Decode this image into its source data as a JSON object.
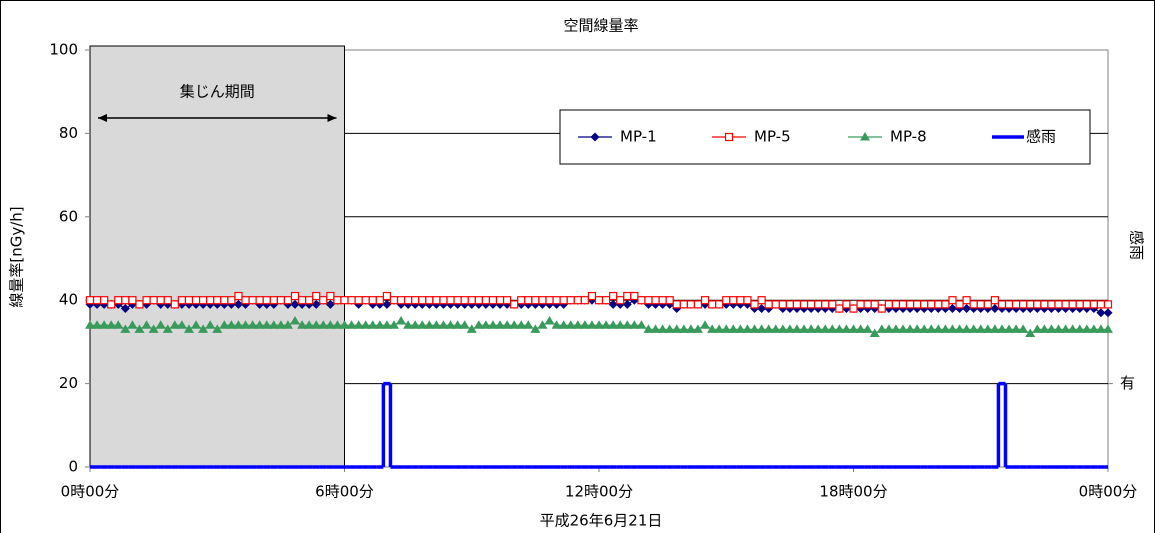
{
  "chart_data": {
    "type": "line",
    "title": "空間線量率",
    "xlabel": "平成26年6月21日",
    "ylabel": "線量率[nGy/h]",
    "y2label": "感雨",
    "shade": {
      "label": "集じん期間",
      "x": [
        0,
        360
      ]
    },
    "legend": "upper right",
    "grid": true,
    "xlim": [
      0,
      1440
    ],
    "xticks": [
      {
        "value": 0,
        "label": "0時00分"
      },
      {
        "value": 360,
        "label": "6時00分"
      },
      {
        "value": 720,
        "label": "12時00分"
      },
      {
        "value": 1080,
        "label": "18時00分"
      },
      {
        "value": 1440,
        "label": "0時00分"
      }
    ],
    "ylim": [
      0,
      100
    ],
    "yticks": [
      0,
      20,
      40,
      60,
      80,
      100
    ],
    "y2lim": [
      0,
      100
    ],
    "y2ticks": [
      {
        "value": 20,
        "label": "有"
      }
    ],
    "x": [
      0,
      10,
      20,
      30,
      40,
      50,
      60,
      70,
      80,
      90,
      100,
      110,
      120,
      130,
      140,
      150,
      160,
      170,
      180,
      190,
      200,
      210,
      220,
      230,
      240,
      250,
      260,
      270,
      280,
      290,
      300,
      310,
      320,
      330,
      340,
      350,
      360,
      370,
      380,
      390,
      400,
      410,
      420,
      430,
      440,
      450,
      460,
      470,
      480,
      490,
      500,
      510,
      520,
      530,
      540,
      550,
      560,
      570,
      580,
      590,
      600,
      610,
      620,
      630,
      640,
      650,
      660,
      670,
      680,
      690,
      700,
      710,
      720,
      730,
      740,
      750,
      760,
      770,
      780,
      790,
      800,
      810,
      820,
      830,
      840,
      850,
      860,
      870,
      880,
      890,
      900,
      910,
      920,
      930,
      940,
      950,
      960,
      970,
      980,
      990,
      1000,
      1010,
      1020,
      1030,
      1040,
      1050,
      1060,
      1070,
      1080,
      1090,
      1100,
      1110,
      1120,
      1130,
      1140,
      1150,
      1160,
      1170,
      1180,
      1190,
      1200,
      1210,
      1220,
      1230,
      1240,
      1250,
      1260,
      1270,
      1280,
      1290,
      1300,
      1310,
      1320,
      1330,
      1340,
      1350,
      1360,
      1370,
      1380,
      1390,
      1400,
      1410,
      1420,
      1430,
      1440
    ],
    "series": [
      {
        "name": "MP-1",
        "color": "#000080",
        "marker": "diamond",
        "values": [
          39,
          39,
          39,
          39,
          39,
          38,
          39,
          39,
          39,
          40,
          39,
          39,
          39,
          39,
          39,
          39,
          39,
          39,
          39,
          39,
          39,
          39,
          39,
          40,
          39,
          39,
          39,
          40,
          39,
          39,
          39,
          39,
          39,
          40,
          39,
          40,
          40,
          40,
          39,
          40,
          39,
          39,
          39,
          40,
          39,
          39,
          39,
          39,
          39,
          39,
          39,
          39,
          39,
          39,
          39,
          39,
          39,
          39,
          39,
          39,
          39,
          39,
          39,
          39,
          39,
          39,
          39,
          39,
          40,
          40,
          40,
          40,
          40,
          40,
          39,
          39,
          39,
          40,
          40,
          39,
          39,
          39,
          39,
          38,
          39,
          39,
          39,
          39,
          39,
          39,
          39,
          39,
          39,
          39,
          38,
          38,
          38,
          39,
          38,
          38,
          38,
          38,
          38,
          38,
          38,
          38,
          38,
          38,
          38,
          38,
          38,
          38,
          38,
          38,
          38,
          38,
          38,
          38,
          38,
          38,
          38,
          38,
          38,
          38,
          38,
          38,
          38,
          38,
          38,
          38,
          38,
          38,
          38,
          38,
          38,
          38,
          38,
          38,
          38,
          38,
          38,
          38,
          38,
          37,
          37
        ]
      },
      {
        "name": "MP-5",
        "color": "#ff0000",
        "marker": "square",
        "values": [
          40,
          40,
          40,
          39,
          40,
          40,
          40,
          39,
          40,
          40,
          40,
          40,
          39,
          40,
          40,
          40,
          40,
          40,
          40,
          40,
          40,
          41,
          40,
          40,
          40,
          40,
          40,
          40,
          40,
          41,
          40,
          40,
          41,
          40,
          41,
          40,
          40,
          40,
          40,
          40,
          40,
          40,
          41,
          40,
          40,
          40,
          40,
          40,
          40,
          40,
          40,
          40,
          40,
          40,
          40,
          40,
          40,
          40,
          40,
          40,
          39,
          40,
          40,
          40,
          40,
          40,
          40,
          40,
          40,
          40,
          40,
          41,
          40,
          40,
          41,
          40,
          41,
          41,
          40,
          40,
          40,
          40,
          40,
          39,
          39,
          39,
          39,
          40,
          39,
          39,
          40,
          40,
          40,
          40,
          39,
          40,
          39,
          39,
          39,
          39,
          39,
          39,
          39,
          39,
          39,
          39,
          38,
          39,
          38,
          39,
          39,
          39,
          38,
          39,
          39,
          39,
          39,
          39,
          39,
          39,
          39,
          39,
          40,
          39,
          40,
          39,
          39,
          39,
          40,
          39,
          39,
          39,
          39,
          39,
          39,
          39,
          39,
          39,
          39,
          39,
          39,
          39,
          39,
          39,
          39
        ]
      },
      {
        "name": "MP-8",
        "color": "#3a9a5c",
        "marker": "triangle",
        "values": [
          34,
          34,
          34,
          34,
          34,
          33,
          34,
          33,
          34,
          33,
          34,
          33,
          34,
          34,
          33,
          34,
          33,
          34,
          33,
          34,
          34,
          34,
          34,
          34,
          34,
          34,
          34,
          34,
          34,
          35,
          34,
          34,
          34,
          34,
          34,
          34,
          34,
          34,
          34,
          34,
          34,
          34,
          34,
          34,
          35,
          34,
          34,
          34,
          34,
          34,
          34,
          34,
          34,
          34,
          33,
          34,
          34,
          34,
          34,
          34,
          34,
          34,
          34,
          33,
          34,
          35,
          34,
          34,
          34,
          34,
          34,
          34,
          34,
          34,
          34,
          34,
          34,
          34,
          34,
          33,
          33,
          33,
          33,
          33,
          33,
          33,
          33,
          34,
          33,
          33,
          33,
          33,
          33,
          33,
          33,
          33,
          33,
          33,
          33,
          33,
          33,
          33,
          33,
          33,
          33,
          33,
          33,
          33,
          33,
          33,
          33,
          32,
          33,
          33,
          33,
          33,
          33,
          33,
          33,
          33,
          33,
          33,
          33,
          33,
          33,
          33,
          33,
          33,
          33,
          33,
          33,
          33,
          33,
          32,
          33,
          33,
          33,
          33,
          33,
          33,
          33,
          33,
          33,
          33,
          33
        ]
      },
      {
        "name": "感雨",
        "color": "#0000ff",
        "axis": "y2",
        "drawstyle": "steps",
        "values": [
          0,
          0,
          0,
          0,
          0,
          0,
          0,
          0,
          0,
          0,
          0,
          0,
          0,
          0,
          0,
          0,
          0,
          0,
          0,
          0,
          0,
          0,
          0,
          0,
          0,
          0,
          0,
          0,
          0,
          0,
          0,
          0,
          0,
          0,
          0,
          0,
          0,
          0,
          0,
          0,
          0,
          0,
          20,
          0,
          0,
          0,
          0,
          0,
          0,
          0,
          0,
          0,
          0,
          0,
          0,
          0,
          0,
          0,
          0,
          0,
          0,
          0,
          0,
          0,
          0,
          0,
          0,
          0,
          0,
          0,
          0,
          0,
          0,
          0,
          0,
          0,
          0,
          0,
          0,
          0,
          0,
          0,
          0,
          0,
          0,
          0,
          0,
          0,
          0,
          0,
          0,
          0,
          0,
          0,
          0,
          0,
          0,
          0,
          0,
          0,
          0,
          0,
          0,
          0,
          0,
          0,
          0,
          0,
          0,
          0,
          0,
          0,
          0,
          0,
          0,
          0,
          0,
          0,
          0,
          0,
          0,
          0,
          0,
          0,
          0,
          0,
          0,
          0,
          0,
          20,
          0,
          0,
          0,
          0,
          0,
          0,
          0,
          0,
          0,
          0,
          0,
          0,
          0,
          0,
          0
        ]
      }
    ]
  }
}
